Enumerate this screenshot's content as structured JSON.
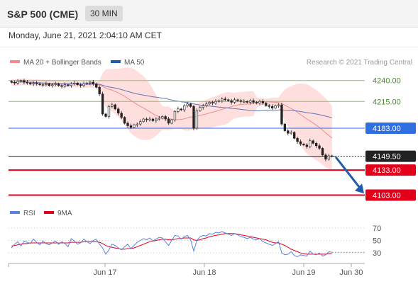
{
  "header": {
    "title": "S&P 500 (CME)",
    "timeframe": "30 MIN",
    "datetime": "Monday, June 21, 2021 2:04:10 AM CET"
  },
  "legend": {
    "ma20": "MA 20 + Bollinger Bands",
    "ma50": "MA 50",
    "copyright": "Research © 2021 Trading Central"
  },
  "indicator_legend": {
    "rsi": "RSI",
    "ma9": "9MA"
  },
  "colors": {
    "candle": "#222222",
    "ma20": "#f08c8c",
    "band_fill": "#ffdede",
    "ma50": "#5a6fb8",
    "resistance": "#8cc06a",
    "pivot": "#2f6fe0",
    "support": "#e2001a",
    "last": "#222222",
    "rsi": "#5a82e0",
    "rsi_ma": "#e2001a",
    "arrow": "#1f5ba8"
  },
  "chart_data": [
    {
      "type": "candlestick",
      "title": "",
      "x": [
        "Jun 17",
        "Jun 18",
        "Jun 19",
        "Jun 30"
      ],
      "ylim": [
        4095,
        4255
      ],
      "levels": [
        {
          "label": "4240.00",
          "value": 4240.0,
          "kind": "resistance"
        },
        {
          "label": "4215.00",
          "value": 4215.0,
          "kind": "resistance"
        },
        {
          "label": "4183.00",
          "value": 4183.0,
          "kind": "pivot"
        },
        {
          "label": "4149.50",
          "value": 4149.5,
          "kind": "last"
        },
        {
          "label": "4133.00",
          "value": 4133.0,
          "kind": "support"
        },
        {
          "label": "4103.00",
          "value": 4103.0,
          "kind": "support"
        }
      ],
      "close_series": [
        4238,
        4237,
        4239,
        4240,
        4238,
        4237,
        4236,
        4237,
        4236,
        4235,
        4235,
        4236,
        4234,
        4235,
        4236,
        4234,
        4233,
        4235,
        4234,
        4236,
        4237,
        4235,
        4234,
        4236,
        4237,
        4238,
        4236,
        4232,
        4224,
        4200,
        4197,
        4209,
        4211,
        4206,
        4201,
        4196,
        4189,
        4186,
        4184,
        4187,
        4188,
        4191,
        4194,
        4193,
        4194,
        4192,
        4194,
        4195,
        4197,
        4194,
        4189,
        4193,
        4203,
        4206,
        4205,
        4210,
        4212,
        4209,
        4183,
        4204,
        4208,
        4210,
        4212,
        4214,
        4213,
        4215,
        4216,
        4218,
        4217,
        4216,
        4214,
        4217,
        4216,
        4215,
        4215,
        4214,
        4216,
        4214,
        4213,
        4215,
        4213,
        4210,
        4209,
        4207,
        4210,
        4211,
        4188,
        4180,
        4177,
        4178,
        4171,
        4167,
        4164,
        4163,
        4161,
        4168,
        4165,
        4162,
        4159,
        4151,
        4146,
        4150,
        4149.5
      ],
      "projection": {
        "from": 4149.5,
        "to": 4105
      }
    },
    {
      "type": "line",
      "title": "",
      "ylim": [
        20,
        80
      ],
      "yticks": [
        70,
        50,
        30
      ],
      "ytick_labels": [
        "70",
        "50",
        "30"
      ],
      "series": [
        {
          "name": "RSI",
          "values": [
            38,
            44,
            48,
            41,
            49,
            47,
            45,
            52,
            47,
            43,
            49,
            45,
            43,
            46,
            49,
            44,
            48,
            45,
            40,
            53,
            49,
            44,
            46,
            52,
            48,
            45,
            50,
            52,
            44,
            38,
            28,
            35,
            44,
            42,
            38,
            35,
            40,
            44,
            37,
            42,
            47,
            50,
            53,
            51,
            54,
            49,
            52,
            55,
            54,
            48,
            42,
            50,
            58,
            57,
            52,
            56,
            58,
            51,
            33,
            50,
            56,
            58,
            57,
            61,
            60,
            63,
            62,
            64,
            62,
            60,
            58,
            61,
            59,
            56,
            55,
            53,
            55,
            52,
            51,
            53,
            48,
            46,
            44,
            42,
            45,
            48,
            30,
            27,
            28,
            32,
            26,
            24,
            27,
            26,
            25,
            33,
            28,
            27,
            30,
            25,
            27,
            32,
            31
          ]
        },
        {
          "name": "9MA",
          "values": [
            41,
            42,
            43,
            44,
            45,
            45,
            46,
            46,
            46,
            46,
            46,
            46,
            46,
            46,
            46,
            46,
            46,
            46,
            46,
            47,
            47,
            47,
            47,
            48,
            48,
            48,
            48,
            48,
            47,
            45,
            42,
            40,
            39,
            38,
            37,
            36,
            36,
            37,
            37,
            38,
            40,
            42,
            44,
            46,
            48,
            49,
            50,
            51,
            52,
            52,
            51,
            51,
            52,
            53,
            53,
            54,
            54,
            54,
            51,
            50,
            51,
            53,
            54,
            56,
            57,
            58,
            59,
            60,
            61,
            61,
            61,
            61,
            60,
            59,
            58,
            57,
            56,
            55,
            54,
            53,
            52,
            51,
            49,
            47,
            46,
            46,
            44,
            42,
            39,
            36,
            34,
            32,
            30,
            29,
            28,
            28,
            28,
            28,
            28,
            28,
            28,
            29,
            29
          ]
        }
      ]
    }
  ]
}
